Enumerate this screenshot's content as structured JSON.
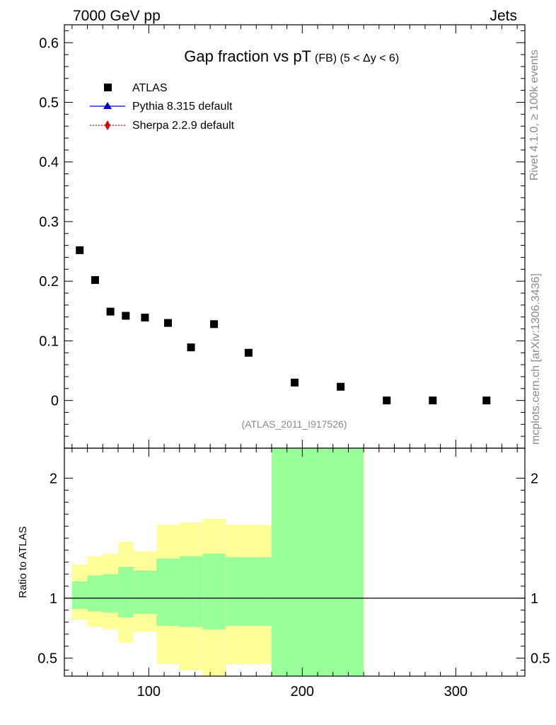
{
  "header": {
    "energy_label": "7000 GeV pp",
    "process_label": "Jets"
  },
  "side_labels": {
    "rivet": "Rivet 4.1.0, ≥ 100k events",
    "source": "mcplots.cern.ch [arXiv:1306.3436]"
  },
  "chart_data": [
    {
      "type": "scatter",
      "title": "Gap fraction vs pT",
      "title_suffix": "(FB) (5 < Δy < 6)",
      "analysis_label": "(ATLAS_2011_I917526)",
      "legend": [
        "ATLAS",
        "Pythia 8.315 default",
        "Sherpa 2.2.9 default"
      ],
      "legend_placement": "top-left",
      "xlim": [
        45,
        345
      ],
      "ylim": [
        -0.08,
        0.63
      ],
      "yticks": [
        0,
        0.1,
        0.2,
        0.3,
        0.4,
        0.5,
        0.6
      ],
      "ytick_labels": [
        "0",
        "0.1",
        "0.2",
        "0.3",
        "0.4",
        "0.5",
        "0.6"
      ],
      "series": [
        {
          "name": "ATLAS",
          "x": [
            55,
            65,
            75,
            85,
            97.5,
            112.5,
            127.5,
            142.5,
            165,
            195,
            225,
            255,
            285,
            320
          ],
          "values": [
            0.252,
            0.202,
            0.149,
            0.142,
            0.139,
            0.13,
            0.089,
            0.128,
            0.08,
            0.03,
            0.023,
            0.0,
            0.0,
            0.0
          ]
        }
      ]
    },
    {
      "type": "area",
      "ylabel": "Ratio to ATLAS",
      "xlim": [
        45,
        345
      ],
      "ylim": [
        0.35,
        2.25
      ],
      "yticks": [
        0.5,
        1,
        2
      ],
      "ytick_labels": [
        "0.5",
        "1",
        "2"
      ],
      "xticks": [
        100,
        200,
        300
      ],
      "xtick_labels": [
        "100",
        "200",
        "300"
      ],
      "reference_line": 1,
      "bins": [
        {
          "lo": 50,
          "hi": 60,
          "inner": [
            0.91,
            1.14
          ],
          "outer": [
            0.82,
            1.28
          ]
        },
        {
          "lo": 60,
          "hi": 70,
          "inner": [
            0.89,
            1.19
          ],
          "outer": [
            0.76,
            1.35
          ]
        },
        {
          "lo": 70,
          "hi": 80,
          "inner": [
            0.88,
            1.2
          ],
          "outer": [
            0.74,
            1.37
          ]
        },
        {
          "lo": 80,
          "hi": 90,
          "inner": [
            0.84,
            1.26
          ],
          "outer": [
            0.63,
            1.47
          ]
        },
        {
          "lo": 90,
          "hi": 105,
          "inner": [
            0.87,
            1.23
          ],
          "outer": [
            0.72,
            1.39
          ]
        },
        {
          "lo": 105,
          "hi": 120,
          "inner": [
            0.77,
            1.33
          ],
          "outer": [
            0.45,
            1.61
          ]
        },
        {
          "lo": 120,
          "hi": 135,
          "inner": [
            0.76,
            1.35
          ],
          "outer": [
            0.4,
            1.63
          ]
        },
        {
          "lo": 135,
          "hi": 150,
          "inner": [
            0.74,
            1.37
          ],
          "outer": [
            0.35,
            1.66
          ]
        },
        {
          "lo": 150,
          "hi": 180,
          "inner": [
            0.77,
            1.34
          ],
          "outer": [
            0.45,
            1.61
          ]
        },
        {
          "lo": 180,
          "hi": 240,
          "inner": [
            0.35,
            2.25
          ],
          "outer": [
            0.35,
            2.25
          ]
        }
      ],
      "colors": {
        "inner_band": "#99ff99",
        "outer_band": "#ffff99"
      }
    }
  ]
}
